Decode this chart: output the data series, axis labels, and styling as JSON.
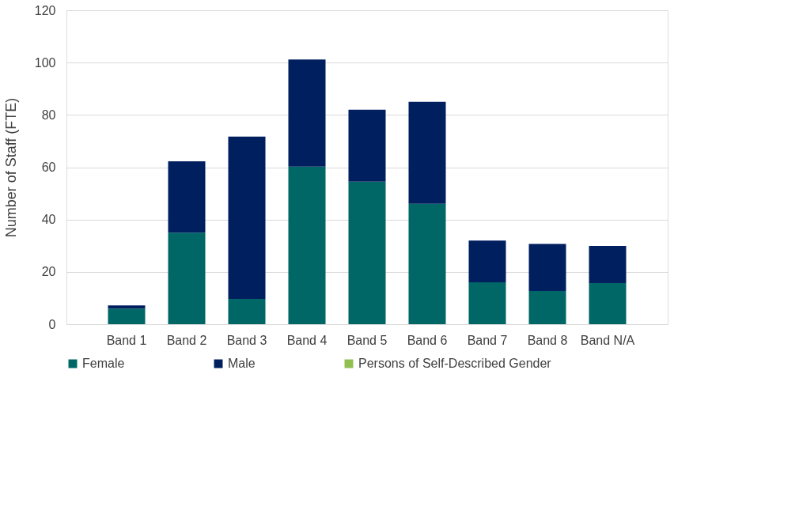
{
  "chart_data": {
    "type": "bar",
    "stacked": true,
    "ylabel": "Number of Staff (FTE)",
    "categories": [
      "Band 1",
      "Band 2",
      "Band 3",
      "Band 4",
      "Band 5",
      "Band 6",
      "Band 7",
      "Band 8",
      "Band N/A"
    ],
    "series": [
      {
        "name": "Female",
        "color": "#006666",
        "values": [
          6,
          35,
          9.7,
          60.2,
          54.5,
          46,
          16,
          12.7,
          15.7
        ]
      },
      {
        "name": "Male",
        "color": "#001f5f",
        "values": [
          1.2,
          27.3,
          62,
          41,
          27.5,
          39,
          16,
          18,
          14.2
        ]
      },
      {
        "name": "Persons of Self-Described Gender",
        "color": "#92c050",
        "values": [
          0,
          0,
          0,
          0,
          0,
          0,
          0,
          0,
          0
        ]
      }
    ],
    "ylim": [
      0,
      120
    ],
    "yticks": [
      0,
      20,
      40,
      60,
      80,
      100,
      120
    ],
    "grid": "y",
    "legend": "bottom"
  }
}
